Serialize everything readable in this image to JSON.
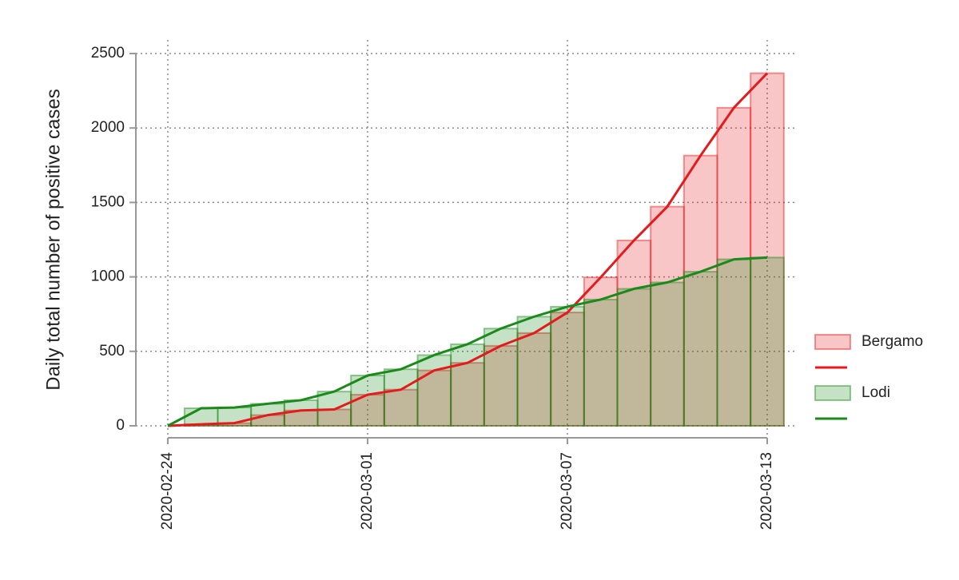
{
  "chart_data": {
    "type": "bar-line",
    "y_label": "Daily total number of positive cases",
    "categories": [
      "2020-02-24",
      null,
      null,
      null,
      null,
      null,
      "2020-03-01",
      null,
      null,
      null,
      null,
      null,
      "2020-03-07",
      null,
      null,
      null,
      null,
      null,
      "2020-03-13"
    ],
    "series": [
      {
        "name": "Bergamo",
        "color": "#e41a1c",
        "values": [
          0,
          10,
          18,
          72,
          103,
          110,
          209,
          243,
          372,
          423,
          537,
          623,
          761,
          997,
          1245,
          1472,
          1815,
          2136,
          2368
        ]
      },
      {
        "name": "Lodi",
        "color": "#1a8a1a",
        "values": [
          0,
          118,
          123,
          148,
          172,
          230,
          338,
          380,
          475,
          548,
          653,
          733,
          800,
          848,
          920,
          963,
          1035,
          1118,
          1130
        ]
      }
    ],
    "ylim": [
      0,
      2500
    ],
    "yticks": [
      0,
      500,
      1000,
      1500,
      2000,
      2500
    ],
    "grid": true
  }
}
